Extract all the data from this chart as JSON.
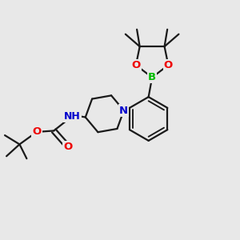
{
  "background_color": "#e8e8e8",
  "bond_color": "#1a1a1a",
  "atom_colors": {
    "B": "#00bb00",
    "O": "#ee0000",
    "N": "#0000cc",
    "C": "#1a1a1a"
  },
  "line_width": 1.6,
  "font_size": 9.5
}
